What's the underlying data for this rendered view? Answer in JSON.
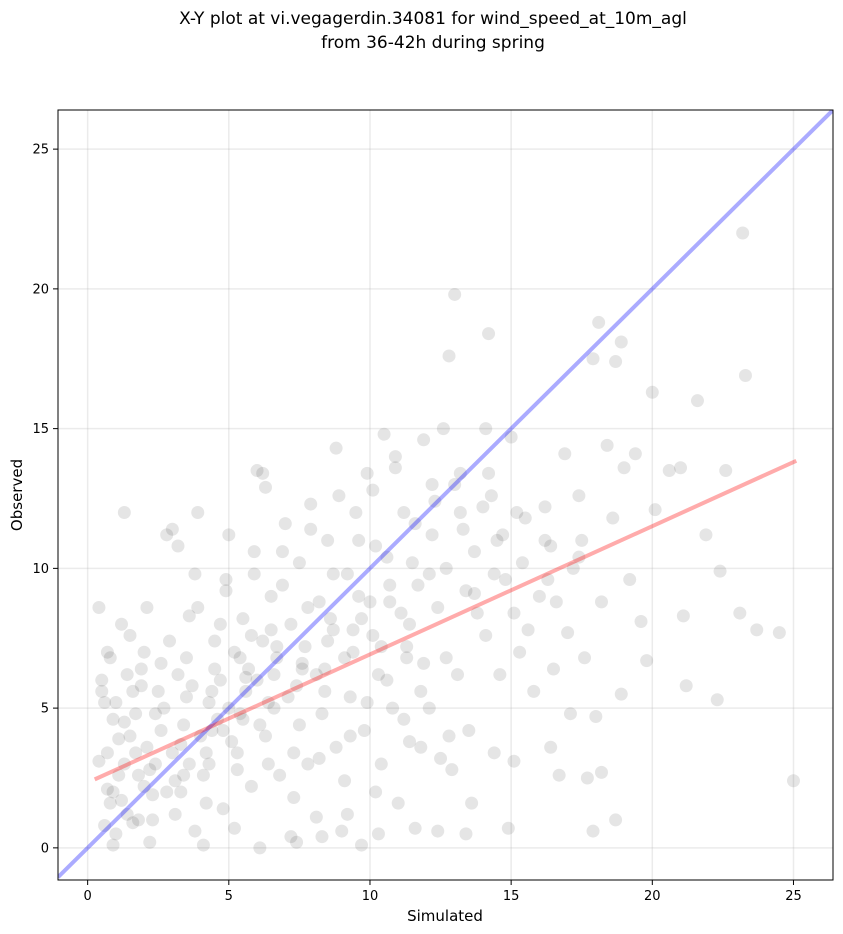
{
  "chart_data": {
    "type": "scatter",
    "title": [
      "X-Y plot at vi.vegagerdin.34081 for wind_speed_at_10m_agl",
      "from 36-42h during spring"
    ],
    "xlabel": "Simulated",
    "ylabel": "Observed",
    "xlim": [
      -1.05,
      26.4
    ],
    "ylim": [
      -1.15,
      26.4
    ],
    "xticks": [
      0,
      5,
      10,
      15,
      20,
      25
    ],
    "yticks": [
      0,
      5,
      10,
      15,
      20,
      25
    ],
    "grid": true,
    "point_color": "#000000",
    "point_opacity": 0.1,
    "identity_line": {
      "x": [
        -1.05,
        26.4
      ],
      "y": [
        -1.05,
        26.4
      ],
      "color": "#0000ff",
      "opacity": 0.33
    },
    "regression_line": {
      "x": [
        0.25,
        25.1
      ],
      "y": [
        2.45,
        13.85
      ],
      "color": "#ff0000",
      "opacity": 0.33
    },
    "points": [
      [
        0.6,
        0.8
      ],
      [
        0.8,
        1.6
      ],
      [
        0.7,
        2.1
      ],
      [
        0.9,
        0.1
      ],
      [
        0.4,
        3.1
      ],
      [
        0.5,
        5.6
      ],
      [
        0.5,
        6.0
      ],
      [
        0.7,
        7.0
      ],
      [
        0.4,
        8.6
      ],
      [
        1.3,
        12.0
      ],
      [
        1.0,
        0.5
      ],
      [
        1.2,
        1.7
      ],
      [
        1.1,
        3.9
      ],
      [
        1.3,
        4.5
      ],
      [
        1.0,
        5.2
      ],
      [
        1.4,
        6.2
      ],
      [
        1.5,
        7.6
      ],
      [
        1.2,
        8.0
      ],
      [
        1.6,
        0.9
      ],
      [
        1.8,
        2.6
      ],
      [
        1.7,
        3.4
      ],
      [
        1.9,
        5.8
      ],
      [
        2.0,
        7.0
      ],
      [
        2.1,
        8.6
      ],
      [
        2.2,
        0.2
      ],
      [
        2.3,
        1.9
      ],
      [
        2.4,
        4.8
      ],
      [
        2.6,
        6.6
      ],
      [
        2.8,
        11.2
      ],
      [
        3.0,
        11.4
      ],
      [
        3.2,
        10.8
      ],
      [
        3.1,
        2.4
      ],
      [
        3.3,
        3.7
      ],
      [
        3.5,
        5.4
      ],
      [
        3.6,
        8.3
      ],
      [
        3.8,
        9.8
      ],
      [
        3.9,
        12.0
      ],
      [
        4.1,
        0.1
      ],
      [
        4.2,
        1.6
      ],
      [
        4.4,
        4.2
      ],
      [
        4.5,
        6.4
      ],
      [
        4.7,
        8.0
      ],
      [
        4.9,
        9.6
      ],
      [
        5.0,
        11.2
      ],
      [
        5.2,
        0.7
      ],
      [
        5.3,
        2.8
      ],
      [
        5.5,
        4.6
      ],
      [
        5.6,
        6.1
      ],
      [
        5.8,
        7.6
      ],
      [
        5.9,
        10.6
      ],
      [
        6.0,
        13.5
      ],
      [
        6.2,
        13.4
      ],
      [
        6.3,
        12.9
      ],
      [
        6.1,
        0.0
      ],
      [
        6.4,
        3.0
      ],
      [
        6.6,
        5.0
      ],
      [
        6.7,
        7.2
      ],
      [
        6.9,
        9.4
      ],
      [
        7.0,
        11.6
      ],
      [
        7.2,
        0.4
      ],
      [
        7.3,
        1.8
      ],
      [
        7.5,
        4.4
      ],
      [
        7.6,
        6.4
      ],
      [
        7.8,
        8.6
      ],
      [
        7.9,
        12.3
      ],
      [
        8.1,
        1.1
      ],
      [
        8.2,
        3.2
      ],
      [
        8.4,
        5.6
      ],
      [
        8.5,
        7.4
      ],
      [
        8.7,
        9.8
      ],
      [
        8.8,
        14.3
      ],
      [
        9.0,
        0.6
      ],
      [
        9.1,
        2.4
      ],
      [
        9.3,
        4.0
      ],
      [
        9.4,
        7.8
      ],
      [
        9.6,
        11.0
      ],
      [
        9.7,
        0.1
      ],
      [
        9.9,
        5.2
      ],
      [
        10.0,
        8.8
      ],
      [
        10.1,
        12.8
      ],
      [
        10.3,
        0.5
      ],
      [
        10.4,
        3.0
      ],
      [
        10.6,
        6.0
      ],
      [
        10.7,
        9.4
      ],
      [
        10.9,
        13.6
      ],
      [
        11.0,
        1.6
      ],
      [
        11.2,
        4.6
      ],
      [
        11.3,
        7.2
      ],
      [
        11.5,
        10.2
      ],
      [
        11.6,
        0.7
      ],
      [
        11.8,
        3.6
      ],
      [
        11.9,
        6.6
      ],
      [
        12.1,
        9.8
      ],
      [
        12.2,
        13.0
      ],
      [
        12.4,
        0.6
      ],
      [
        12.5,
        3.2
      ],
      [
        12.7,
        6.8
      ],
      [
        12.8,
        17.6
      ],
      [
        13.0,
        19.8
      ],
      [
        13.2,
        13.4
      ],
      [
        13.4,
        0.5
      ],
      [
        13.5,
        4.2
      ],
      [
        13.6,
        1.6
      ],
      [
        13.8,
        8.4
      ],
      [
        14.0,
        12.2
      ],
      [
        14.1,
        15.0
      ],
      [
        14.2,
        18.4
      ],
      [
        14.4,
        3.4
      ],
      [
        14.6,
        6.2
      ],
      [
        14.8,
        9.6
      ],
      [
        14.9,
        0.7
      ],
      [
        15.1,
        3.1
      ],
      [
        15.3,
        7.0
      ],
      [
        15.5,
        11.8
      ],
      [
        15.8,
        5.6
      ],
      [
        16.0,
        9.0
      ],
      [
        16.2,
        12.2
      ],
      [
        16.4,
        3.6
      ],
      [
        16.5,
        6.4
      ],
      [
        16.7,
        2.6
      ],
      [
        16.9,
        14.1
      ],
      [
        17.1,
        4.8
      ],
      [
        17.4,
        10.4
      ],
      [
        17.6,
        6.8
      ],
      [
        17.7,
        2.5
      ],
      [
        17.9,
        17.5
      ],
      [
        18.1,
        18.8
      ],
      [
        18.2,
        8.8
      ],
      [
        18.4,
        14.4
      ],
      [
        18.6,
        11.8
      ],
      [
        18.7,
        17.4
      ],
      [
        18.9,
        18.1
      ],
      [
        19.0,
        13.6
      ],
      [
        19.2,
        9.6
      ],
      [
        19.4,
        14.1
      ],
      [
        19.6,
        8.1
      ],
      [
        19.8,
        6.7
      ],
      [
        20.0,
        16.3
      ],
      [
        20.1,
        12.1
      ],
      [
        20.6,
        13.5
      ],
      [
        21.0,
        13.6
      ],
      [
        21.1,
        8.3
      ],
      [
        21.2,
        5.8
      ],
      [
        21.6,
        16.0
      ],
      [
        21.9,
        11.2
      ],
      [
        22.3,
        5.3
      ],
      [
        22.4,
        9.9
      ],
      [
        22.6,
        13.5
      ],
      [
        23.1,
        8.4
      ],
      [
        23.2,
        22.0
      ],
      [
        23.3,
        16.9
      ],
      [
        23.7,
        7.8
      ],
      [
        24.5,
        7.7
      ],
      [
        25.0,
        2.4
      ],
      [
        14.5,
        11.0
      ],
      [
        15.0,
        14.7
      ],
      [
        16.3,
        9.6
      ],
      [
        17.0,
        7.7
      ],
      [
        17.9,
        0.6
      ],
      [
        18.0,
        4.7
      ],
      [
        18.7,
        1.0
      ],
      [
        18.2,
        2.7
      ],
      [
        18.9,
        5.5
      ],
      [
        13.7,
        9.1
      ],
      [
        12.9,
        2.8
      ],
      [
        11.4,
        3.8
      ],
      [
        10.2,
        2.0
      ],
      [
        9.2,
        1.2
      ],
      [
        8.3,
        0.4
      ],
      [
        7.4,
        0.2
      ],
      [
        2.4,
        3.0
      ],
      [
        3.4,
        4.4
      ],
      [
        4.3,
        5.2
      ],
      [
        5.4,
        6.8
      ],
      [
        6.5,
        7.8
      ],
      [
        2.0,
        2.2
      ],
      [
        3.0,
        3.4
      ],
      [
        4.0,
        4.0
      ],
      [
        5.0,
        5.0
      ],
      [
        6.0,
        6.0
      ],
      [
        1.5,
        4.0
      ],
      [
        2.5,
        5.6
      ],
      [
        3.5,
        6.8
      ],
      [
        4.5,
        7.4
      ],
      [
        5.5,
        8.2
      ],
      [
        6.5,
        9.0
      ],
      [
        7.5,
        10.2
      ],
      [
        8.5,
        11.0
      ],
      [
        9.5,
        12.0
      ],
      [
        10.5,
        14.8
      ],
      [
        1.1,
        2.6
      ],
      [
        2.1,
        3.6
      ],
      [
        3.1,
        1.2
      ],
      [
        4.1,
        2.6
      ],
      [
        5.1,
        3.8
      ],
      [
        6.1,
        4.4
      ],
      [
        7.1,
        5.4
      ],
      [
        8.1,
        6.2
      ],
      [
        9.1,
        6.8
      ],
      [
        10.1,
        7.6
      ],
      [
        11.1,
        8.4
      ],
      [
        12.1,
        5.0
      ],
      [
        13.1,
        6.2
      ],
      [
        14.1,
        7.6
      ],
      [
        15.1,
        8.4
      ],
      [
        0.9,
        4.6
      ],
      [
        1.9,
        6.4
      ],
      [
        2.9,
        7.4
      ],
      [
        3.9,
        8.6
      ],
      [
        4.9,
        9.2
      ],
      [
        5.9,
        9.8
      ],
      [
        6.9,
        10.6
      ],
      [
        7.9,
        11.4
      ],
      [
        8.9,
        12.6
      ],
      [
        9.9,
        13.4
      ],
      [
        10.9,
        14.0
      ],
      [
        11.9,
        14.6
      ],
      [
        12.6,
        15.0
      ],
      [
        13.3,
        11.4
      ],
      [
        14.3,
        12.6
      ],
      [
        0.7,
        3.4
      ],
      [
        1.7,
        4.8
      ],
      [
        2.7,
        5.0
      ],
      [
        3.7,
        5.8
      ],
      [
        4.7,
        6.0
      ],
      [
        5.7,
        6.4
      ],
      [
        6.7,
        6.8
      ],
      [
        7.7,
        7.2
      ],
      [
        8.7,
        7.8
      ],
      [
        9.7,
        8.2
      ],
      [
        10.7,
        8.8
      ],
      [
        11.7,
        9.4
      ],
      [
        12.7,
        10.0
      ],
      [
        13.7,
        10.6
      ],
      [
        14.7,
        11.2
      ],
      [
        2.3,
        1.0
      ],
      [
        3.3,
        2.0
      ],
      [
        4.3,
        3.0
      ],
      [
        5.3,
        3.4
      ],
      [
        6.3,
        4.0
      ],
      [
        7.3,
        3.4
      ],
      [
        8.3,
        4.8
      ],
      [
        9.3,
        5.4
      ],
      [
        10.3,
        6.2
      ],
      [
        11.3,
        6.8
      ],
      [
        1.4,
        1.2
      ],
      [
        2.2,
        2.8
      ],
      [
        3.6,
        3.0
      ],
      [
        4.6,
        4.6
      ],
      [
        5.6,
        5.6
      ],
      [
        6.6,
        6.2
      ],
      [
        7.6,
        6.6
      ],
      [
        8.6,
        8.2
      ],
      [
        9.6,
        9.0
      ],
      [
        10.6,
        10.4
      ],
      [
        11.6,
        11.6
      ],
      [
        12.3,
        12.4
      ],
      [
        13.0,
        13.0
      ],
      [
        3.8,
        0.6
      ],
      [
        4.8,
        1.4
      ],
      [
        5.8,
        2.2
      ],
      [
        6.8,
        2.6
      ],
      [
        7.8,
        3.0
      ],
      [
        8.8,
        3.6
      ],
      [
        9.8,
        4.2
      ],
      [
        10.8,
        5.0
      ],
      [
        11.8,
        5.6
      ],
      [
        12.8,
        4.0
      ],
      [
        0.6,
        5.2
      ],
      [
        0.8,
        6.8
      ],
      [
        1.6,
        5.6
      ],
      [
        2.6,
        4.2
      ],
      [
        3.2,
        6.2
      ],
      [
        4.4,
        5.6
      ],
      [
        5.2,
        7.0
      ],
      [
        6.2,
        7.4
      ],
      [
        7.2,
        8.0
      ],
      [
        8.2,
        8.8
      ],
      [
        9.2,
        9.8
      ],
      [
        10.2,
        10.8
      ],
      [
        11.2,
        12.0
      ],
      [
        12.2,
        11.2
      ],
      [
        13.2,
        12.0
      ],
      [
        14.2,
        13.4
      ],
      [
        15.2,
        12.0
      ],
      [
        16.2,
        11.0
      ],
      [
        17.2,
        10.0
      ],
      [
        15.6,
        7.8
      ],
      [
        16.6,
        8.8
      ],
      [
        17.4,
        12.6
      ],
      [
        0.9,
        2.0
      ],
      [
        1.3,
        3.0
      ],
      [
        1.8,
        1.0
      ],
      [
        2.8,
        2.0
      ],
      [
        3.4,
        2.6
      ],
      [
        4.2,
        3.4
      ],
      [
        4.8,
        4.2
      ],
      [
        5.4,
        4.8
      ],
      [
        6.4,
        5.2
      ],
      [
        7.4,
        5.8
      ],
      [
        8.4,
        6.4
      ],
      [
        9.4,
        7.0
      ],
      [
        10.4,
        7.2
      ],
      [
        11.4,
        8.0
      ],
      [
        12.4,
        8.6
      ],
      [
        13.4,
        9.2
      ],
      [
        14.4,
        9.8
      ],
      [
        15.4,
        10.2
      ],
      [
        16.4,
        10.8
      ],
      [
        17.5,
        11.0
      ]
    ]
  }
}
